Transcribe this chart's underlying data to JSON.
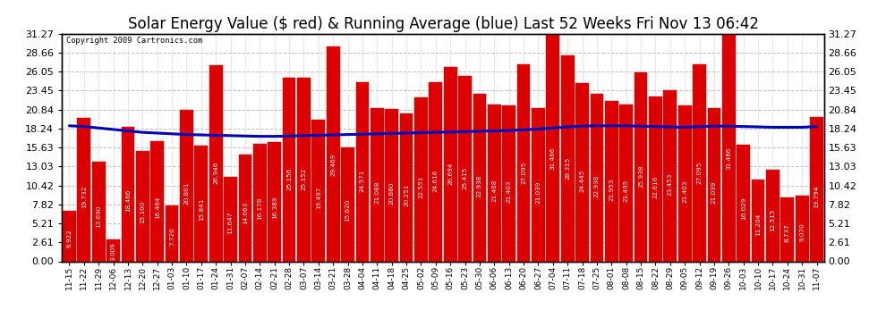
{
  "title": "Solar Energy Value ($ red) & Running Average (blue) Last 52 Weeks Fri Nov 13 06:42",
  "copyright": "Copyright 2009 Cartronics.com",
  "categories": [
    "11-15",
    "11-22",
    "11-29",
    "12-06",
    "12-13",
    "12-20",
    "12-27",
    "01-03",
    "01-10",
    "01-17",
    "01-24",
    "01-31",
    "02-07",
    "02-14",
    "02-21",
    "02-28",
    "03-07",
    "03-14",
    "03-21",
    "03-28",
    "04-04",
    "04-11",
    "04-18",
    "04-25",
    "05-02",
    "05-09",
    "05-16",
    "05-23",
    "05-30",
    "06-06",
    "06-13",
    "06-20",
    "06-27",
    "07-04",
    "07-11",
    "07-18",
    "07-25",
    "08-01",
    "08-08",
    "08-15",
    "08-22",
    "08-29",
    "09-05",
    "09-12",
    "09-19",
    "09-26",
    "10-03",
    "10-10",
    "10-17",
    "10-24",
    "10-31",
    "11-07"
  ],
  "bar_heights": [
    6.922,
    19.732,
    13.69,
    3.009,
    18.466,
    15.1,
    16.464,
    7.72,
    20.801,
    15.841,
    26.946,
    11.647,
    14.663,
    16.178,
    16.389,
    25.156,
    25.152,
    19.497,
    29.469,
    15.62,
    24.571,
    21.088,
    20.88,
    20.251,
    22.551,
    24.616,
    26.694,
    25.415,
    22.938,
    21.468,
    21.403,
    27.095,
    21.039,
    31.466,
    28.315,
    24.445,
    22.938,
    21.953,
    21.495,
    25.938,
    22.616,
    23.453,
    21.403,
    27.095,
    21.039,
    31.466,
    16.029,
    11.204,
    12.515,
    8.737,
    9.07,
    19.794
  ],
  "running_avg": [
    18.6,
    18.5,
    18.3,
    18.1,
    17.9,
    17.7,
    17.6,
    17.5,
    17.4,
    17.35,
    17.3,
    17.25,
    17.2,
    17.15,
    17.15,
    17.2,
    17.25,
    17.3,
    17.35,
    17.4,
    17.45,
    17.5,
    17.55,
    17.6,
    17.65,
    17.7,
    17.75,
    17.8,
    17.85,
    17.9,
    17.95,
    18.05,
    18.15,
    18.3,
    18.45,
    18.55,
    18.6,
    18.6,
    18.6,
    18.55,
    18.5,
    18.45,
    18.4,
    18.5,
    18.55,
    18.55,
    18.5,
    18.45,
    18.4,
    18.4,
    18.4,
    18.5
  ],
  "yticks": [
    0.0,
    2.61,
    5.21,
    7.82,
    10.42,
    13.03,
    15.63,
    18.24,
    20.84,
    23.45,
    26.05,
    28.66,
    31.27
  ],
  "bar_color": "#dd0000",
  "avg_color": "#0000bb",
  "bg_color": "#ffffff",
  "plot_bg_color": "#ffffff",
  "grid_color": "#bbbbbb",
  "title_fontsize": 12,
  "bar_text_fontsize": 5.2,
  "tick_fontsize": 8,
  "ymax": 31.27,
  "ymin": 0.0
}
